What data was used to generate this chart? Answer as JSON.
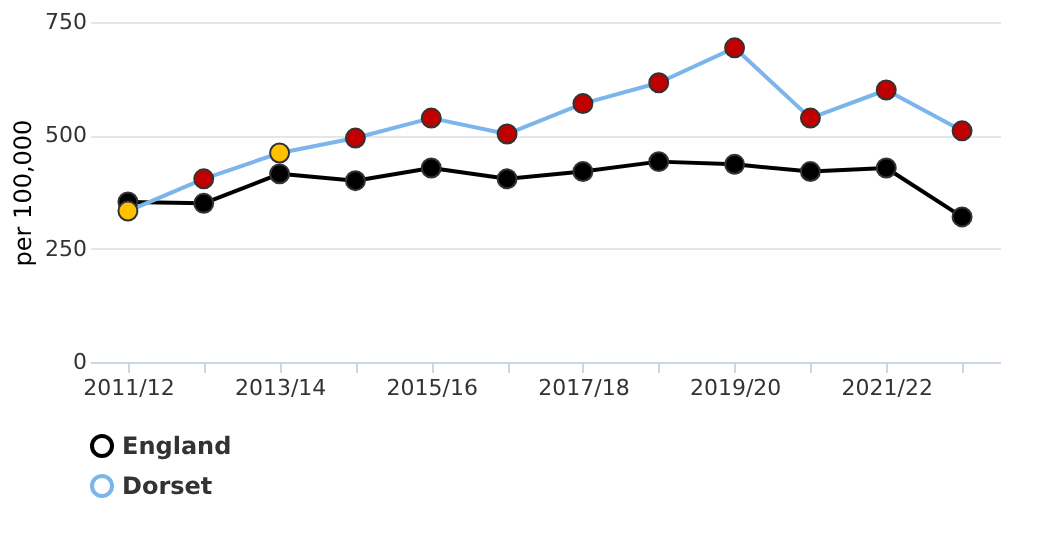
{
  "chart_data": {
    "type": "line",
    "ylabel": "per 100,000",
    "categories": [
      "2011/12",
      null,
      "2013/14",
      null,
      "2015/16",
      null,
      "2017/18",
      null,
      "2019/20",
      null,
      "2021/22",
      null
    ],
    "ylim": [
      0,
      750
    ],
    "yticks": [
      0,
      250,
      500,
      750
    ],
    "grid": "y",
    "legend": "bottom",
    "marker": "circle",
    "series": [
      {
        "name": "England",
        "color": "#000000",
        "values": [
          353,
          350,
          415,
          400,
          428,
          404,
          420,
          442,
          436,
          420,
          428,
          320
        ]
      },
      {
        "name": "Dorset",
        "color": "#7cb5ec",
        "colors": [
          "#ffc000",
          "#c00000",
          "#ffc000",
          "#c00000",
          "#c00000",
          "#c00000",
          "#c00000",
          "#c00000",
          "#c00000",
          "#c00000",
          "#c00000",
          "#c00000"
        ],
        "values": [
          333,
          404,
          461,
          494,
          538,
          503,
          570,
          616,
          693,
          538,
          600,
          510
        ]
      }
    ]
  }
}
